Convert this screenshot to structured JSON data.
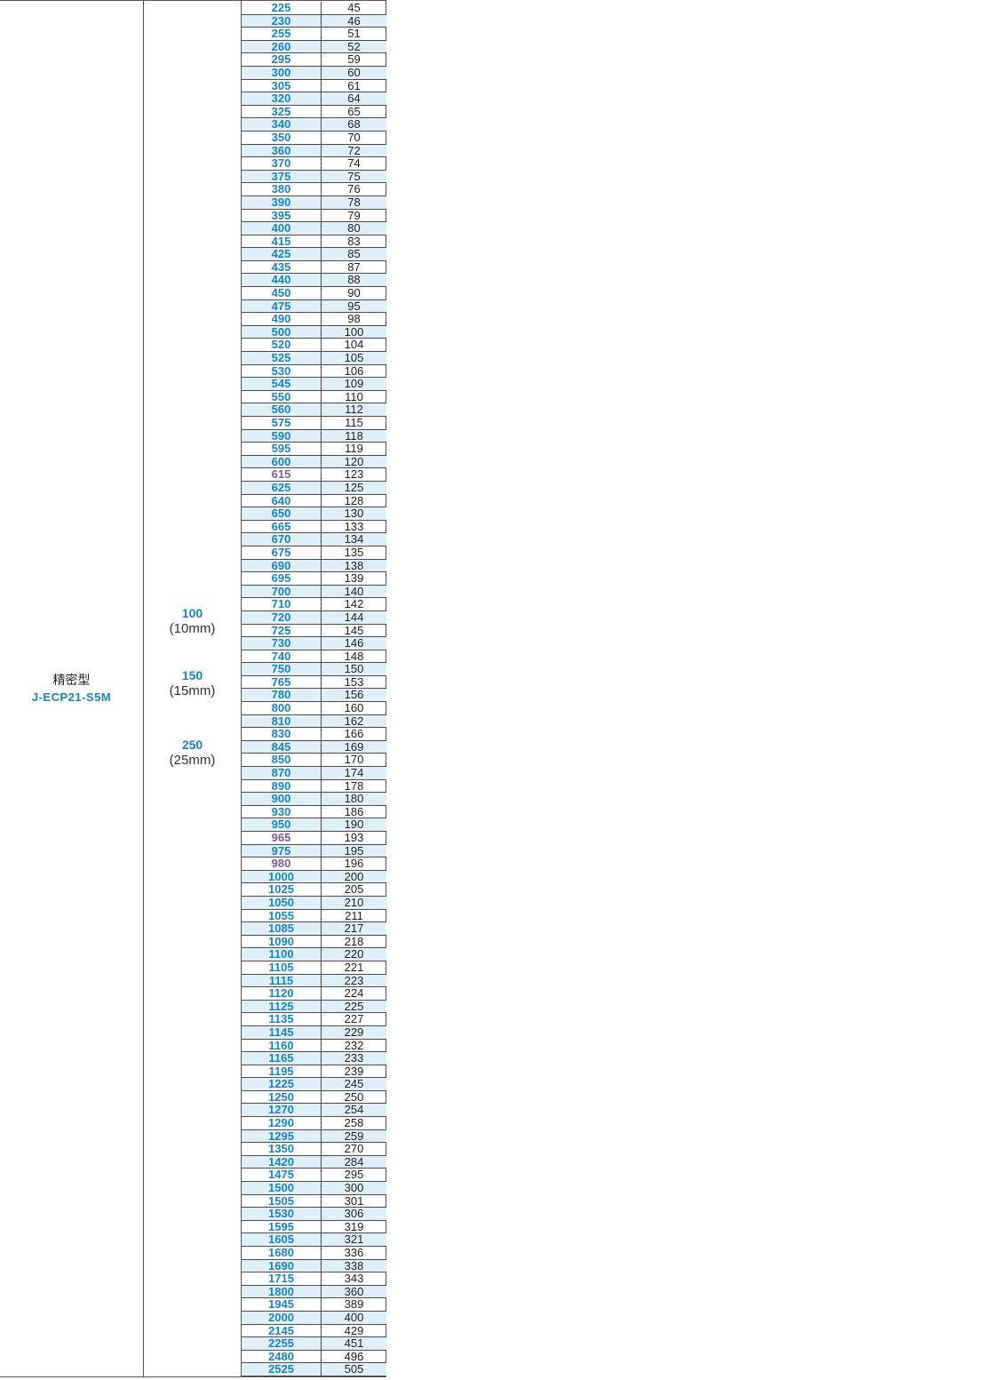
{
  "model": {
    "name": "精密型",
    "code": "J-ECP21-S5M"
  },
  "widths": [
    {
      "value": "100",
      "mm": "(10mm)"
    },
    {
      "value": "150",
      "mm": "(15mm)"
    },
    {
      "value": "250",
      "mm": "(25mm)"
    }
  ],
  "rows": [
    [
      "225",
      "45"
    ],
    [
      "230",
      "46"
    ],
    [
      "255",
      "51"
    ],
    [
      "260",
      "52"
    ],
    [
      "295",
      "59"
    ],
    [
      "300",
      "60"
    ],
    [
      "305",
      "61"
    ],
    [
      "320",
      "64"
    ],
    [
      "325",
      "65"
    ],
    [
      "340",
      "68"
    ],
    [
      "350",
      "70"
    ],
    [
      "360",
      "72"
    ],
    [
      "370",
      "74"
    ],
    [
      "375",
      "75"
    ],
    [
      "380",
      "76"
    ],
    [
      "390",
      "78"
    ],
    [
      "395",
      "79"
    ],
    [
      "400",
      "80"
    ],
    [
      "415",
      "83"
    ],
    [
      "425",
      "85"
    ],
    [
      "435",
      "87"
    ],
    [
      "440",
      "88"
    ],
    [
      "450",
      "90"
    ],
    [
      "475",
      "95"
    ],
    [
      "490",
      "98"
    ],
    [
      "500",
      "100"
    ],
    [
      "520",
      "104"
    ],
    [
      "525",
      "105"
    ],
    [
      "530",
      "106"
    ],
    [
      "545",
      "109"
    ],
    [
      "550",
      "110"
    ],
    [
      "560",
      "112"
    ],
    [
      "575",
      "115"
    ],
    [
      "590",
      "118"
    ],
    [
      "595",
      "119"
    ],
    [
      "600",
      "120"
    ],
    [
      "615",
      "123"
    ],
    [
      "625",
      "125"
    ],
    [
      "640",
      "128"
    ],
    [
      "650",
      "130"
    ],
    [
      "665",
      "133"
    ],
    [
      "670",
      "134"
    ],
    [
      "675",
      "135"
    ],
    [
      "690",
      "138"
    ],
    [
      "695",
      "139"
    ],
    [
      "700",
      "140"
    ],
    [
      "710",
      "142"
    ],
    [
      "720",
      "144"
    ],
    [
      "725",
      "145"
    ],
    [
      "730",
      "146"
    ],
    [
      "740",
      "148"
    ],
    [
      "750",
      "150"
    ],
    [
      "765",
      "153"
    ],
    [
      "780",
      "156"
    ],
    [
      "800",
      "160"
    ],
    [
      "810",
      "162"
    ],
    [
      "830",
      "166"
    ],
    [
      "845",
      "169"
    ],
    [
      "850",
      "170"
    ],
    [
      "870",
      "174"
    ],
    [
      "890",
      "178"
    ],
    [
      "900",
      "180"
    ],
    [
      "930",
      "186"
    ],
    [
      "950",
      "190"
    ],
    [
      "965",
      "193"
    ],
    [
      "975",
      "195"
    ],
    [
      "980",
      "196"
    ],
    [
      "1000",
      "200"
    ],
    [
      "1025",
      "205"
    ],
    [
      "1050",
      "210"
    ],
    [
      "1055",
      "211"
    ],
    [
      "1085",
      "217"
    ],
    [
      "1090",
      "218"
    ],
    [
      "1100",
      "220"
    ],
    [
      "1105",
      "221"
    ],
    [
      "1115",
      "223"
    ],
    [
      "1120",
      "224"
    ],
    [
      "1125",
      "225"
    ],
    [
      "1135",
      "227"
    ],
    [
      "1145",
      "229"
    ],
    [
      "1160",
      "232"
    ],
    [
      "1165",
      "233"
    ],
    [
      "1195",
      "239"
    ],
    [
      "1225",
      "245"
    ],
    [
      "1250",
      "250"
    ],
    [
      "1270",
      "254"
    ],
    [
      "1290",
      "258"
    ],
    [
      "1295",
      "259"
    ],
    [
      "1350",
      "270"
    ],
    [
      "1420",
      "284"
    ],
    [
      "1475",
      "295"
    ],
    [
      "1500",
      "300"
    ],
    [
      "1505",
      "301"
    ],
    [
      "1530",
      "306"
    ],
    [
      "1595",
      "319"
    ],
    [
      "1605",
      "321"
    ],
    [
      "1680",
      "336"
    ],
    [
      "1690",
      "338"
    ],
    [
      "1715",
      "343"
    ],
    [
      "1800",
      "360"
    ],
    [
      "1945",
      "389"
    ],
    [
      "2000",
      "400"
    ],
    [
      "2145",
      "429"
    ],
    [
      "2255",
      "451"
    ],
    [
      "2480",
      "496"
    ],
    [
      "2525",
      "505"
    ]
  ],
  "alt_lengths": [
    "615",
    "965",
    "980"
  ],
  "colors": {
    "accent": "#1683c8",
    "alt": "#7b5a9e",
    "stripe": "#dff0f8"
  }
}
